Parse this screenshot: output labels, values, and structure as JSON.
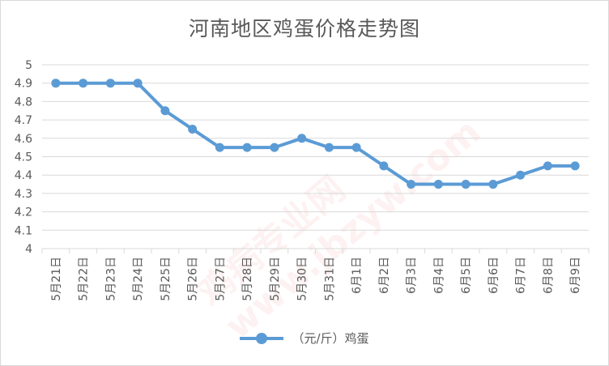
{
  "chart_data": {
    "type": "line",
    "title": "河南地区鸡蛋价格走势图",
    "xlabel": "",
    "ylabel": "",
    "categories": [
      "5月21日",
      "5月22日",
      "5月23日",
      "5月24日",
      "5月25日",
      "5月26日",
      "5月27日",
      "5月28日",
      "5月29日",
      "5月30日",
      "5月31日",
      "6月1日",
      "6月2日",
      "6月3日",
      "6月4日",
      "6月5日",
      "6月6日",
      "6月7日",
      "6月8日",
      "6月9日"
    ],
    "series": [
      {
        "name": "（元/斤）鸡蛋",
        "values": [
          4.9,
          4.9,
          4.9,
          4.9,
          4.75,
          4.65,
          4.55,
          4.55,
          4.55,
          4.6,
          4.55,
          4.55,
          4.45,
          4.35,
          4.35,
          4.35,
          4.35,
          4.4,
          4.45,
          4.45
        ]
      }
    ],
    "ylim": [
      4,
      5
    ],
    "yticks": [
      "4",
      "4.1",
      "4.2",
      "4.3",
      "4.4",
      "4.5",
      "4.6",
      "4.7",
      "4.8",
      "4.9",
      "5"
    ],
    "grid": true,
    "legend_position": "bottom",
    "line_color": "#5b9bd5",
    "grid_color": "#d9d9d9",
    "text_color": "#595959"
  },
  "watermark_text": "鸡病专业网 www.jbzyw.com"
}
